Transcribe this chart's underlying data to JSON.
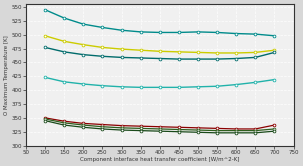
{
  "x": [
    100,
    150,
    200,
    250,
    300,
    350,
    400,
    450,
    500,
    550,
    600,
    650,
    700
  ],
  "series": [
    {
      "y": [
        545,
        530,
        519,
        513,
        508,
        505,
        504,
        504,
        505,
        504,
        502,
        501,
        498
      ],
      "color": "#008B8B",
      "lw": 1.0
    },
    {
      "y": [
        498,
        488,
        482,
        477,
        474,
        472,
        470,
        469,
        468,
        467,
        467,
        468,
        472
      ],
      "color": "#cccc00",
      "lw": 1.0
    },
    {
      "y": [
        477,
        469,
        464,
        461,
        459,
        458,
        457,
        456,
        456,
        456,
        457,
        459,
        468
      ],
      "color": "#006B6B",
      "lw": 1.0
    },
    {
      "y": [
        423,
        415,
        411,
        408,
        406,
        405,
        405,
        405,
        406,
        407,
        410,
        414,
        419
      ],
      "color": "#20B2AA",
      "lw": 1.0
    },
    {
      "y": [
        350,
        344,
        340,
        338,
        336,
        335,
        334,
        333,
        332,
        331,
        330,
        330,
        337
      ],
      "color": "#8B0000",
      "lw": 0.9
    },
    {
      "y": [
        348,
        341,
        337,
        334,
        332,
        331,
        330,
        329,
        328,
        327,
        327,
        327,
        330
      ],
      "color": "#2E5E1E",
      "lw": 0.9
    },
    {
      "y": [
        345,
        337,
        333,
        330,
        328,
        327,
        326,
        325,
        324,
        323,
        323,
        323,
        326
      ],
      "color": "#1a4a1a",
      "lw": 0.9
    }
  ],
  "xlim": [
    50,
    750
  ],
  "ylim": [
    300,
    555
  ],
  "xticks": [
    50,
    100,
    150,
    200,
    250,
    300,
    350,
    400,
    450,
    500,
    550,
    600,
    650,
    700,
    750
  ],
  "yticks": [
    300,
    325,
    350,
    375,
    400,
    425,
    450,
    475,
    500,
    525,
    550
  ],
  "xlabel": "Component interface heat transfer coefficient [W/m^2-K]",
  "ylabel": "O Maximum Temperature [K]",
  "plot_bg": "#f0f0f0",
  "fig_bg": "#d8d8d8",
  "grid_color": "#ffffff",
  "spine_color": "#333333"
}
